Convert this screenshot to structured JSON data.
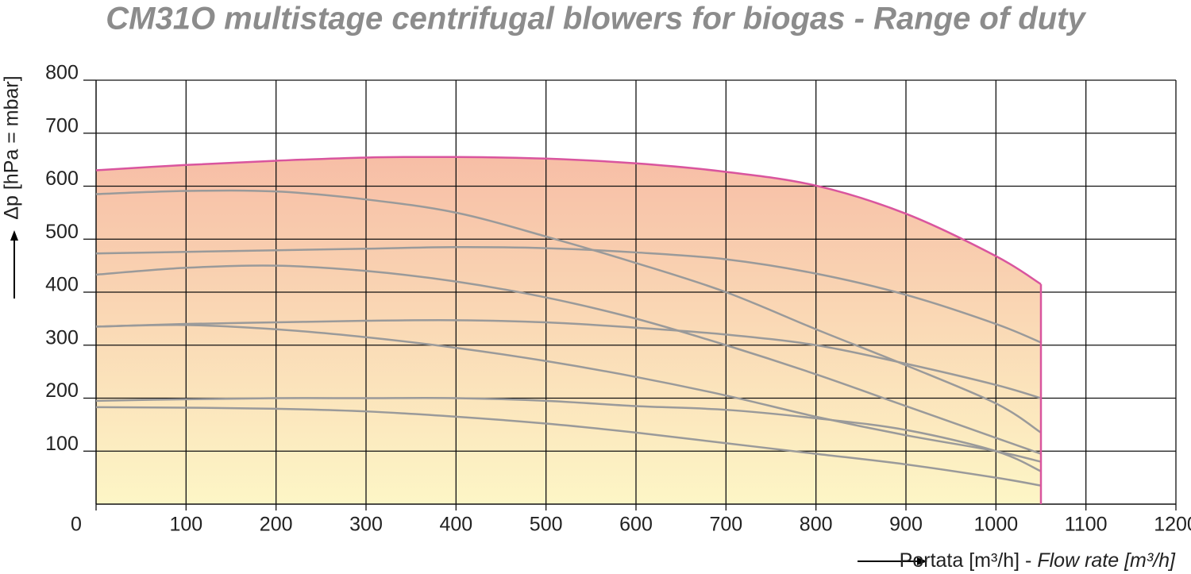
{
  "chart_data": {
    "type": "line",
    "title": "CM31O multistage centrifugal blowers for biogas - Range of duty",
    "ylabel": "Δp  [hPa = mbar]",
    "xlabel": [
      "Portata [m³/h] - ",
      "Flow rate [m³/h]"
    ],
    "x": [
      0,
      100,
      200,
      300,
      400,
      500,
      600,
      700,
      800,
      900,
      1000,
      1050
    ],
    "xlim": [
      0,
      1200
    ],
    "xticks": [
      0,
      100,
      200,
      300,
      400,
      500,
      600,
      700,
      800,
      900,
      1000,
      1100,
      1200
    ],
    "ylim": [
      0,
      800
    ],
    "yticks": [
      100,
      200,
      300,
      400,
      500,
      600,
      700,
      800
    ],
    "grid": true,
    "fill_colors": [
      "#f7bea6",
      "#fdf6c6"
    ],
    "envelope": {
      "color": "#d9559e",
      "values": [
        630,
        640,
        648,
        654,
        655,
        652,
        643,
        627,
        601,
        548,
        468,
        415
      ]
    },
    "series": [
      {
        "color": "#9a9a9a",
        "values": [
          585,
          591,
          590,
          575,
          550,
          505,
          455,
          400,
          330,
          262,
          190,
          135
        ]
      },
      {
        "color": "#9a9a9a",
        "values": [
          473,
          476,
          479,
          482,
          485,
          483,
          475,
          462,
          435,
          395,
          340,
          305
        ]
      },
      {
        "color": "#9a9a9a",
        "values": [
          433,
          446,
          450,
          440,
          420,
          390,
          350,
          300,
          245,
          185,
          125,
          95
        ]
      },
      {
        "color": "#9a9a9a",
        "values": [
          335,
          340,
          343,
          346,
          347,
          343,
          333,
          320,
          300,
          265,
          225,
          200
        ]
      },
      {
        "color": "#9a9a9a",
        "values": [
          335,
          338,
          330,
          315,
          295,
          270,
          240,
          205,
          165,
          130,
          100,
          80
        ]
      },
      {
        "color": "#9a9a9a",
        "values": [
          195,
          198,
          200,
          200,
          200,
          195,
          185,
          178,
          162,
          140,
          100,
          62
        ]
      },
      {
        "color": "#9a9a9a",
        "values": [
          183,
          182,
          180,
          175,
          165,
          152,
          135,
          115,
          95,
          75,
          50,
          35
        ]
      }
    ]
  }
}
